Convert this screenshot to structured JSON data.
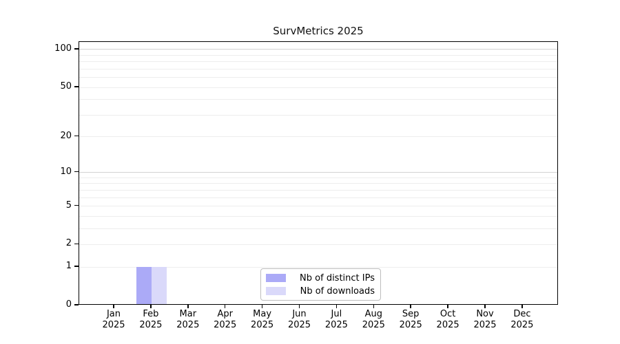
{
  "chart_data": {
    "type": "bar",
    "title": "SurvMetrics 2025",
    "x_tick_labels": [
      {
        "month": "Jan",
        "year": "2025"
      },
      {
        "month": "Feb",
        "year": "2025"
      },
      {
        "month": "Mar",
        "year": "2025"
      },
      {
        "month": "Apr",
        "year": "2025"
      },
      {
        "month": "May",
        "year": "2025"
      },
      {
        "month": "Jun",
        "year": "2025"
      },
      {
        "month": "Jul",
        "year": "2025"
      },
      {
        "month": "Aug",
        "year": "2025"
      },
      {
        "month": "Sep",
        "year": "2025"
      },
      {
        "month": "Oct",
        "year": "2025"
      },
      {
        "month": "Nov",
        "year": "2025"
      },
      {
        "month": "Dec",
        "year": "2025"
      }
    ],
    "series": [
      {
        "name": "Nb of distinct IPs",
        "color": "#abaaf7",
        "values": [
          0,
          1,
          0,
          0,
          0,
          0,
          0,
          0,
          0,
          0,
          0,
          0
        ]
      },
      {
        "name": "Nb of downloads",
        "color": "#dad9fa",
        "values": [
          0,
          1,
          0,
          0,
          0,
          0,
          0,
          0,
          0,
          0,
          0,
          0
        ]
      }
    ],
    "y_axis": {
      "scale": "log10(value+1)",
      "tick_values": [
        0,
        1,
        2,
        5,
        10,
        20,
        50,
        100
      ],
      "major_gridline_values": [
        10,
        100
      ],
      "minor_gridline_values": [
        1,
        2,
        3,
        4,
        5,
        6,
        7,
        8,
        9,
        20,
        30,
        40,
        50,
        60,
        70,
        80,
        90
      ],
      "range": [
        0,
        115
      ]
    },
    "legend": {
      "entries": [
        "Nb of distinct IPs",
        "Nb of downloads"
      ],
      "position": "bottom-center"
    },
    "grid": true
  },
  "colors": {
    "major_grid": "#d2d2d2",
    "minor_grid": "#ededed",
    "axis": "#000000",
    "background": "#ffffff",
    "bar_distinct_ips": "#abaaf7",
    "bar_downloads": "#dad9fa"
  }
}
